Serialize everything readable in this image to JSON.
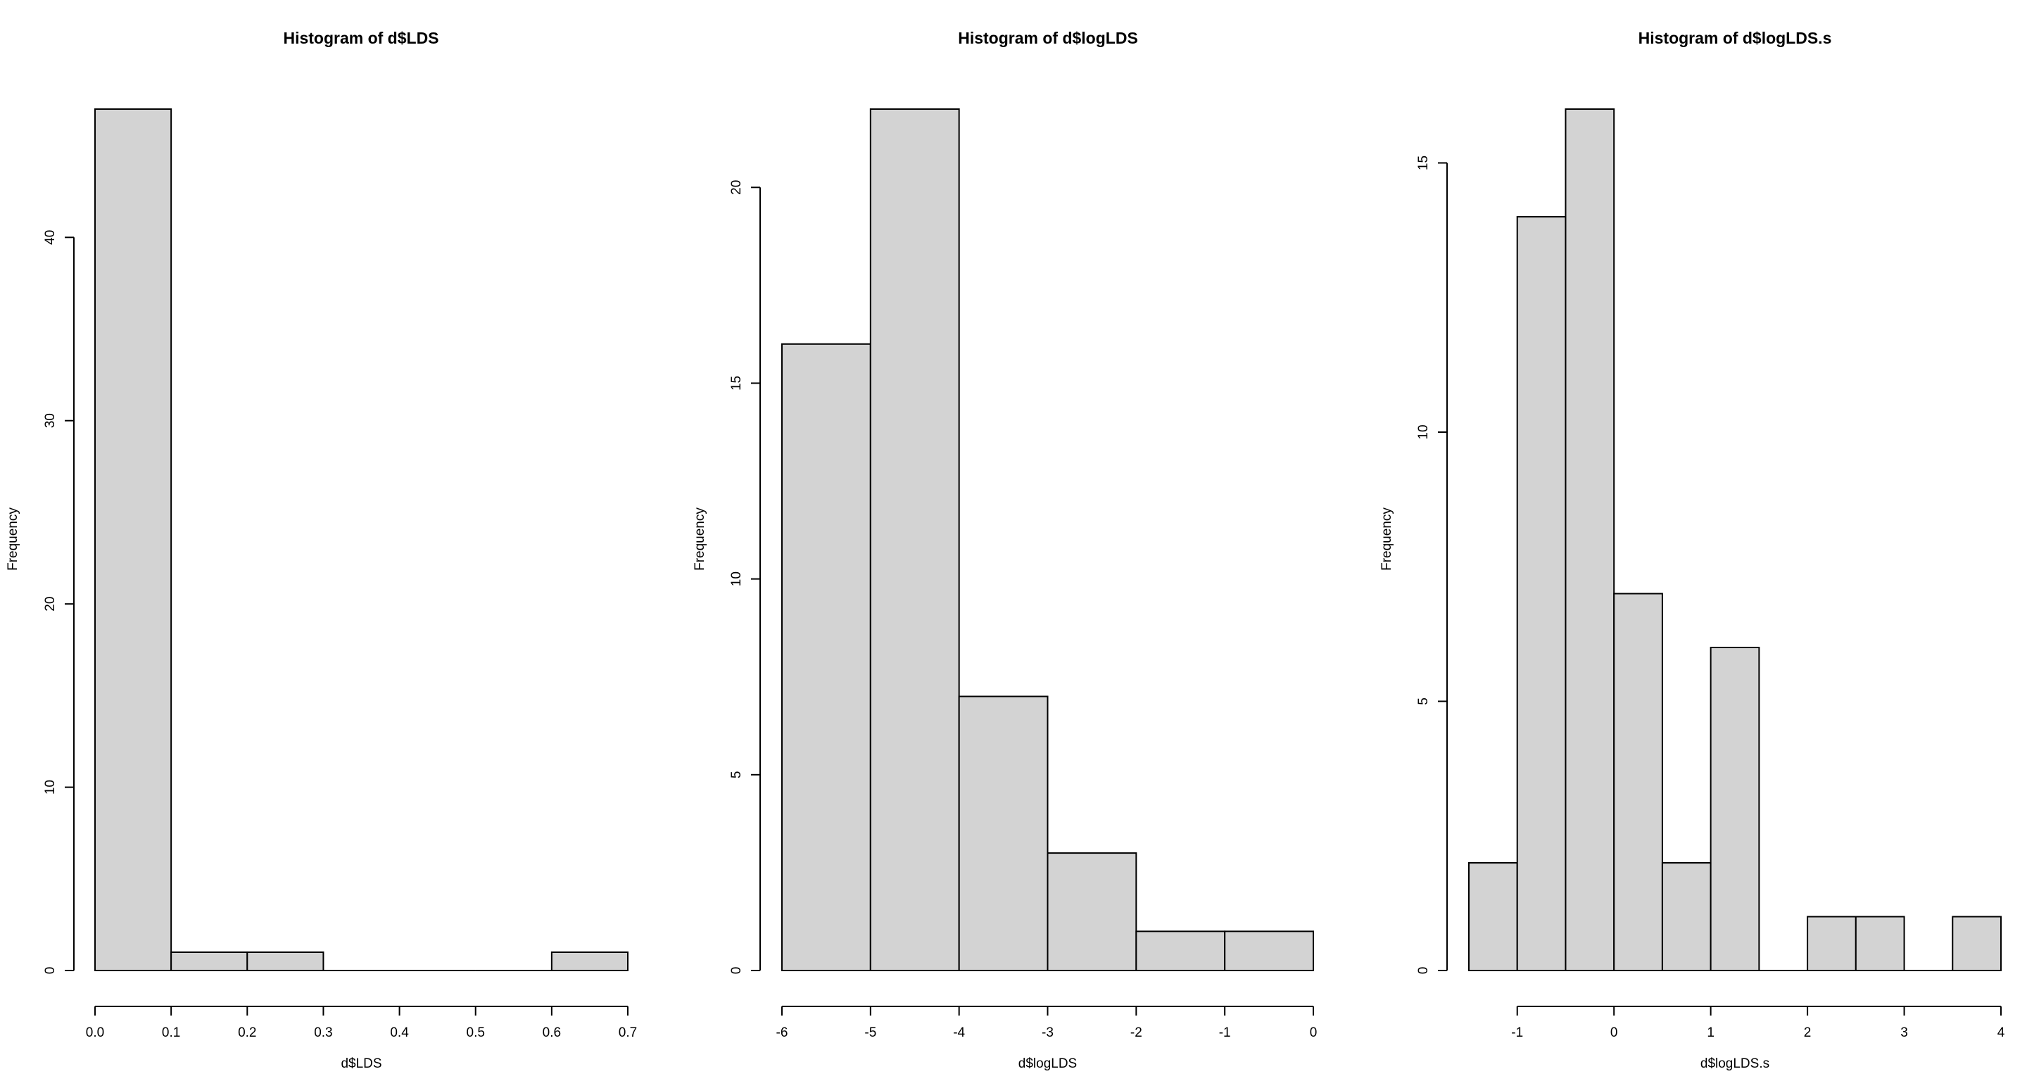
{
  "style": {
    "bar_fill": "#d3d3d3",
    "bar_stroke": "#000000",
    "background": "#ffffff"
  },
  "chart_data": [
    {
      "type": "bar",
      "title": "Histogram of d$LDS",
      "xlabel": "d$LDS",
      "ylabel": "Frequency",
      "xlim": [
        0.0,
        0.7
      ],
      "ylim": [
        0,
        47
      ],
      "x_ticks": [
        0.0,
        0.1,
        0.2,
        0.3,
        0.4,
        0.5,
        0.6,
        0.7
      ],
      "x_tick_labels": [
        "0.0",
        "0.1",
        "0.2",
        "0.3",
        "0.4",
        "0.5",
        "0.6",
        "0.7"
      ],
      "y_ticks": [
        0,
        10,
        20,
        30,
        40
      ],
      "y_tick_labels": [
        "0",
        "10",
        "20",
        "30",
        "40"
      ],
      "bins": [
        {
          "start": 0.0,
          "end": 0.1,
          "count": 47
        },
        {
          "start": 0.1,
          "end": 0.2,
          "count": 1
        },
        {
          "start": 0.2,
          "end": 0.3,
          "count": 1
        },
        {
          "start": 0.3,
          "end": 0.4,
          "count": 0
        },
        {
          "start": 0.4,
          "end": 0.5,
          "count": 0
        },
        {
          "start": 0.5,
          "end": 0.6,
          "count": 0
        },
        {
          "start": 0.6,
          "end": 0.7,
          "count": 1
        }
      ],
      "grid": false
    },
    {
      "type": "bar",
      "title": "Histogram of d$logLDS",
      "xlabel": "d$logLDS",
      "ylabel": "Frequency",
      "xlim": [
        -6,
        0
      ],
      "ylim": [
        0,
        22
      ],
      "x_ticks": [
        -6,
        -5,
        -4,
        -3,
        -2,
        -1,
        0
      ],
      "x_tick_labels": [
        "-6",
        "-5",
        "-4",
        "-3",
        "-2",
        "-1",
        "0"
      ],
      "y_ticks": [
        0,
        5,
        10,
        15,
        20
      ],
      "y_tick_labels": [
        "0",
        "5",
        "10",
        "15",
        "20"
      ],
      "bins": [
        {
          "start": -6,
          "end": -5,
          "count": 16
        },
        {
          "start": -5,
          "end": -4,
          "count": 22
        },
        {
          "start": -4,
          "end": -3,
          "count": 7
        },
        {
          "start": -3,
          "end": -2,
          "count": 3
        },
        {
          "start": -2,
          "end": -1,
          "count": 1
        },
        {
          "start": -1,
          "end": 0,
          "count": 1
        }
      ],
      "grid": false
    },
    {
      "type": "bar",
      "title": "Histogram of d$logLDS.s",
      "xlabel": "d$logLDS.s",
      "ylabel": "Frequency",
      "xlim": [
        -1.5,
        4
      ],
      "ylim": [
        0,
        16
      ],
      "x_ticks": [
        -1,
        0,
        1,
        2,
        3,
        4
      ],
      "x_tick_labels": [
        "-1",
        "0",
        "1",
        "2",
        "3",
        "4"
      ],
      "y_ticks": [
        0,
        5,
        10,
        15
      ],
      "y_tick_labels": [
        "0",
        "5",
        "10",
        "15"
      ],
      "bins": [
        {
          "start": -1.5,
          "end": -1.0,
          "count": 2
        },
        {
          "start": -1.0,
          "end": -0.5,
          "count": 14
        },
        {
          "start": -0.5,
          "end": 0.0,
          "count": 16
        },
        {
          "start": 0.0,
          "end": 0.5,
          "count": 7
        },
        {
          "start": 0.5,
          "end": 1.0,
          "count": 2
        },
        {
          "start": 1.0,
          "end": 1.5,
          "count": 6
        },
        {
          "start": 1.5,
          "end": 2.0,
          "count": 0
        },
        {
          "start": 2.0,
          "end": 2.5,
          "count": 1
        },
        {
          "start": 2.5,
          "end": 3.0,
          "count": 1
        },
        {
          "start": 3.0,
          "end": 3.5,
          "count": 0
        },
        {
          "start": 3.5,
          "end": 4.0,
          "count": 1
        }
      ],
      "grid": false
    }
  ]
}
